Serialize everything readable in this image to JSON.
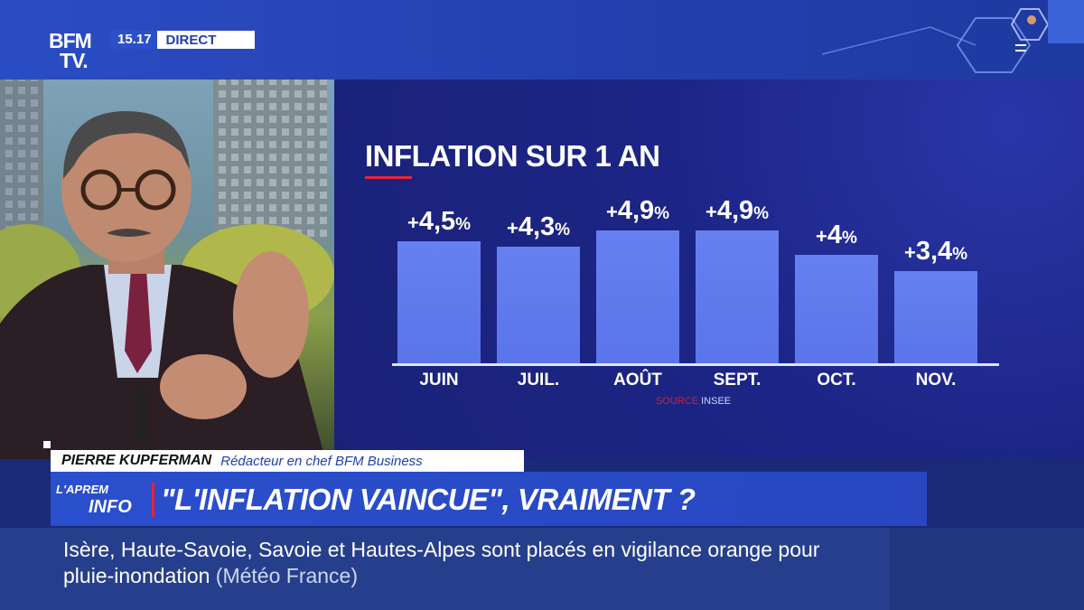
{
  "channel": {
    "logo_line1": "BFM",
    "logo_line2": "TV.",
    "time": "15.17",
    "live_label": "DIRECT"
  },
  "chart_data": {
    "type": "bar",
    "title": "INFLATION SUR 1 AN",
    "categories": [
      "JUIN",
      "JUIL.",
      "AOÛT",
      "SEPT.",
      "OCT.",
      "NOV."
    ],
    "values": [
      4.5,
      4.3,
      4.9,
      4.9,
      4.0,
      3.4
    ],
    "value_labels": [
      "4,5",
      "4,3",
      "4,9",
      "4,9",
      "4",
      "3,4"
    ],
    "label_prefix": "+",
    "label_suffix": "%",
    "source_word": "SOURCE",
    "source_name": "INSEE",
    "bar_color": "#6680f0",
    "grid": false
  },
  "guest": {
    "name": "PIERRE KUPFERMAN",
    "role": "Rédacteur en chef BFM Business"
  },
  "show": {
    "logo_top": "L'APREM",
    "logo_bottom": "INFO",
    "headline": "\"L'INFLATION VAINCUE\", VRAIMENT ?"
  },
  "ticker": {
    "text": "Isère, Haute-Savoie, Savoie et Hautes-Alpes sont placés en vigilance orange pour pluie-inondation",
    "source": "(Météo France)"
  },
  "colors": {
    "brand_blue": "#2a4dc4",
    "panel_navy": "#1c2586",
    "accent_red": "#e8243a"
  }
}
